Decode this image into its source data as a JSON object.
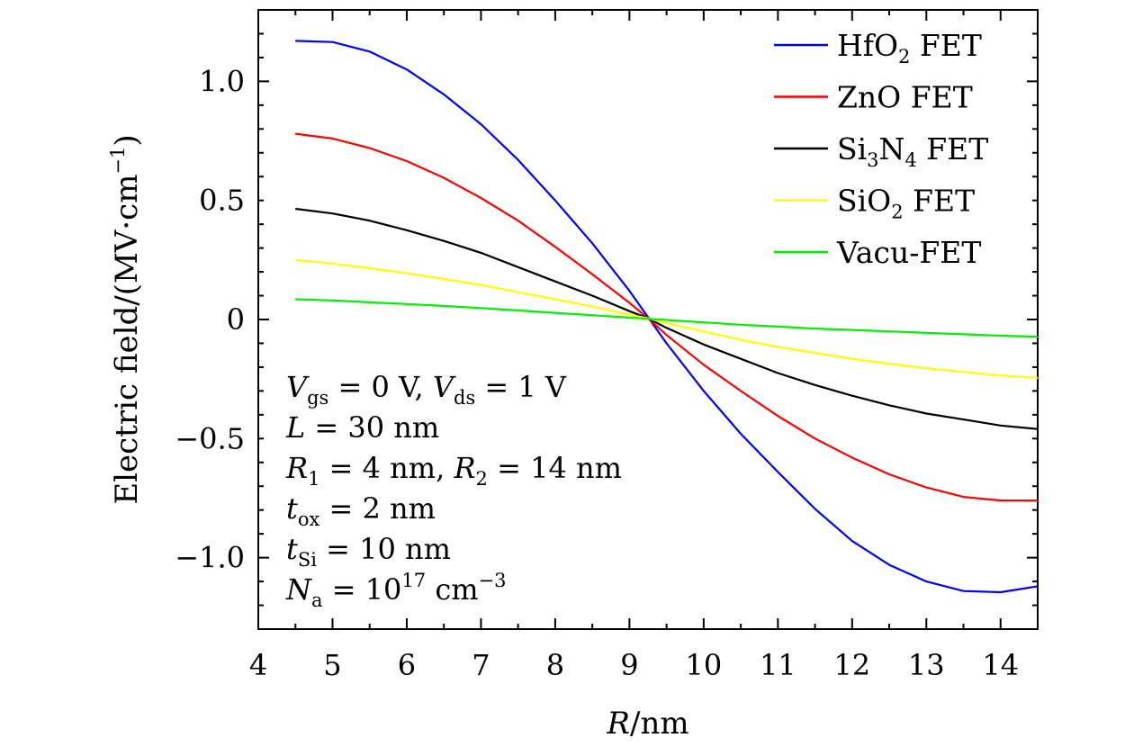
{
  "chart_data": {
    "type": "line",
    "xlabel_var": "R",
    "xlabel_unit": "/nm",
    "ylabel": "Electric field/(MV·cm",
    "ylabel_exp": "−1",
    "ylabel_close": ")",
    "xlim": [
      4,
      14.5
    ],
    "ylim": [
      -1.3,
      1.3
    ],
    "x_ticks": [
      4,
      5,
      6,
      7,
      8,
      9,
      10,
      11,
      12,
      13,
      14
    ],
    "x_tick_labels": [
      "4",
      "5",
      "6",
      "7",
      "8",
      "9",
      "10",
      "11",
      "12",
      "13",
      "14"
    ],
    "y_ticks": [
      1.0,
      0.5,
      0,
      -0.5,
      -1.0
    ],
    "y_tick_labels": [
      "1.0",
      "0.5",
      "0",
      "−0.5",
      "−1.0"
    ],
    "legend_position": "top-right",
    "x": [
      4.5,
      5.0,
      5.5,
      6.0,
      6.5,
      7.0,
      7.5,
      8.0,
      8.5,
      9.0,
      9.25,
      9.5,
      10.0,
      10.5,
      11.0,
      11.5,
      12.0,
      12.5,
      13.0,
      13.5,
      14.0,
      14.5
    ],
    "series": [
      {
        "name": "HfO2 FET",
        "legend_main": "HfO",
        "legend_sub": "2",
        "legend_rest": " FET",
        "color": "#0000ff",
        "values": [
          1.17,
          1.165,
          1.125,
          1.05,
          0.945,
          0.82,
          0.67,
          0.5,
          0.32,
          0.12,
          0.01,
          -0.1,
          -0.3,
          -0.48,
          -0.64,
          -0.795,
          -0.93,
          -1.03,
          -1.1,
          -1.14,
          -1.145,
          -1.12
        ]
      },
      {
        "name": "ZnO FET",
        "legend_main": "ZnO",
        "legend_sub": "",
        "legend_rest": " FET",
        "color": "#ff0000",
        "values": [
          0.78,
          0.76,
          0.72,
          0.665,
          0.595,
          0.51,
          0.415,
          0.305,
          0.19,
          0.07,
          0.005,
          -0.065,
          -0.19,
          -0.3,
          -0.405,
          -0.5,
          -0.58,
          -0.65,
          -0.705,
          -0.745,
          -0.76,
          -0.76
        ]
      },
      {
        "name": "Si3N4 FET",
        "legend_main": "Si",
        "legend_sub": "3",
        "legend_mid": "N",
        "legend_sub2": "4",
        "legend_rest": " FET",
        "color": "#000000",
        "values": [
          0.465,
          0.445,
          0.415,
          0.375,
          0.33,
          0.28,
          0.22,
          0.16,
          0.1,
          0.035,
          0.005,
          -0.035,
          -0.105,
          -0.165,
          -0.225,
          -0.275,
          -0.32,
          -0.36,
          -0.395,
          -0.42,
          -0.445,
          -0.46
        ]
      },
      {
        "name": "SiO2 FET",
        "legend_main": "SiO",
        "legend_sub": "2",
        "legend_rest": " FET",
        "color": "#ffff00",
        "values": [
          0.25,
          0.235,
          0.215,
          0.195,
          0.17,
          0.145,
          0.115,
          0.085,
          0.055,
          0.02,
          0.005,
          -0.015,
          -0.05,
          -0.085,
          -0.115,
          -0.14,
          -0.165,
          -0.185,
          -0.205,
          -0.22,
          -0.235,
          -0.245
        ]
      },
      {
        "name": "Vacu-FET",
        "legend_main": "Vacu-FET",
        "legend_sub": "",
        "legend_rest": "",
        "color": "#00ee00",
        "values": [
          0.085,
          0.08,
          0.072,
          0.065,
          0.057,
          0.048,
          0.038,
          0.028,
          0.018,
          0.008,
          0.003,
          -0.002,
          -0.012,
          -0.022,
          -0.03,
          -0.038,
          -0.044,
          -0.05,
          -0.056,
          -0.062,
          -0.068,
          -0.072
        ]
      }
    ],
    "annotations": {
      "line1_v1": "V",
      "line1_v1_sub": "gs",
      "line1_v1_eq": " = 0 V, ",
      "line1_v2": "V",
      "line1_v2_sub": "ds",
      "line1_v2_eq": " = 1 V",
      "line2_var": "L",
      "line2_eq": " = 30 nm",
      "line3_r1": "R",
      "line3_r1_sub": "1",
      "line3_r1_eq": " = 4 nm, ",
      "line3_r2": "R",
      "line3_r2_sub": "2",
      "line3_r2_eq": " = 14 nm",
      "line4_var": "t",
      "line4_sub": "ox",
      "line4_eq": " = 2 nm",
      "line5_var": "t",
      "line5_sub": "Si",
      "line5_eq": " = 10 nm",
      "line6_var": "N",
      "line6_sub": "a",
      "line6_eq": " = 10",
      "line6_exp1": "17",
      "line6_unit": " cm",
      "line6_exp2": "−3"
    }
  }
}
